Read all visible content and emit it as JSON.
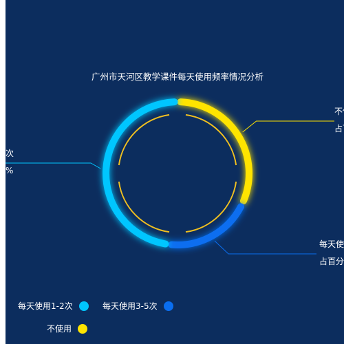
{
  "chart_data": {
    "type": "pie",
    "style": "donut-segmented-ring",
    "title": "广州市天河区教学课件每天使用频率情况分析",
    "categories": [
      "每天使用1-2次",
      "每天使用3-5次",
      "不使用"
    ],
    "values": [
      48,
      20,
      32
    ],
    "value_unit": "%",
    "colors": {
      "每天使用1-2次": "#00c6ff",
      "每天使用3-5次": "#0a6ef0",
      "不使用": "#ffe400",
      "inner_ring": "#f0c020",
      "background": "#0c2d5e"
    },
    "slice_labels": [
      {
        "name": "每天使用1-2次",
        "name_visible": "次",
        "pct_visible": "%"
      },
      {
        "name": "每天使用3-5次",
        "name_visible": "每天使",
        "pct_visible": "占百分"
      },
      {
        "name": "不使用",
        "name_visible": "不使",
        "pct_visible": "占百"
      }
    ],
    "legend": {
      "placement": "bottom-left",
      "items": [
        "每天使用1-2次",
        "每天使用3-5次",
        "不使用"
      ]
    }
  }
}
